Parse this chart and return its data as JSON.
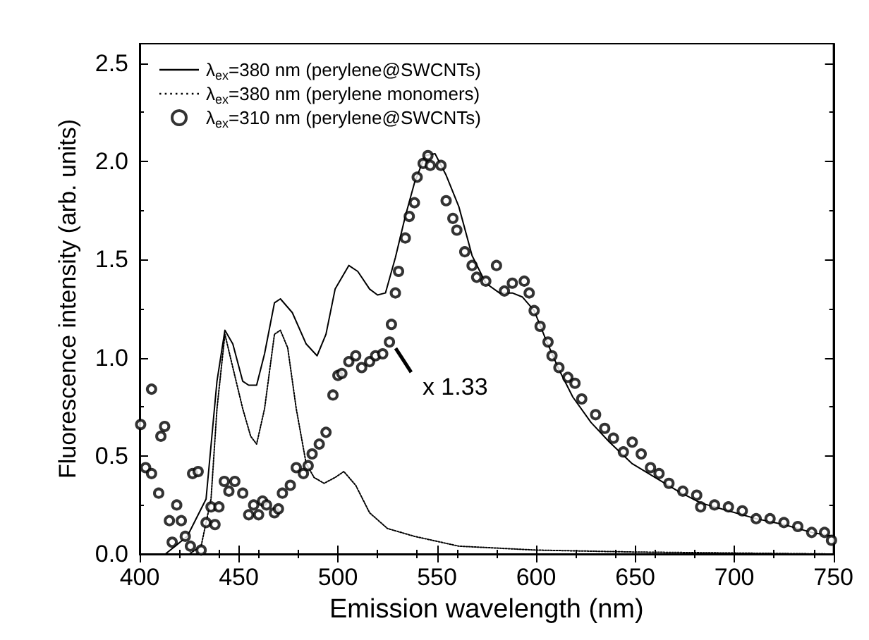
{
  "chart_data": {
    "type": "line",
    "xlabel": "Emission wavelength (nm)",
    "ylabel": "Fluorescence intensity (arb. units)",
    "xlim": [
      400,
      750
    ],
    "xticks": [
      400,
      450,
      500,
      550,
      600,
      650,
      700,
      750
    ],
    "ylim": [
      0,
      2.6
    ],
    "yticks": [
      {
        "value": 0,
        "label": "0.0"
      },
      0.5,
      {
        "value": 1,
        "label": "1.0"
      },
      1.5,
      {
        "value": 2,
        "label": "2.0"
      },
      2.5
    ],
    "legend": "top left",
    "grid": false,
    "annotations": [
      {
        "text": "x 1.33",
        "x": 527,
        "y": 1.07
      }
    ],
    "series": [
      {
        "name": "λ$_{ex}$=380 nm (perylene@SWCNTs)",
        "line_style": "solid",
        "marker": "none",
        "color": "#000000",
        "x": [
          400,
          413,
          424,
          433.5,
          439,
          443,
          447,
          452,
          455,
          459,
          463,
          468,
          471,
          477,
          484,
          489.5,
          494,
          498.6,
          505.5,
          510,
          516,
          520,
          524,
          529,
          534,
          538.6,
          544,
          549,
          554.6,
          561,
          567.7,
          574.6,
          581.5,
          588,
          593,
          599,
          604.6,
          611.5,
          618.5,
          627.7,
          637,
          648.5,
          660,
          671.6,
          683,
          697,
          711,
          725,
          739,
          750
        ],
        "values": [
          0,
          0,
          0.09,
          0.28,
          0.88,
          1.14,
          1.07,
          0.88,
          0.86,
          0.86,
          1.02,
          1.28,
          1.3,
          1.23,
          1.07,
          1.01,
          1.12,
          1.35,
          1.47,
          1.44,
          1.35,
          1.32,
          1.33,
          1.51,
          1.72,
          1.89,
          2.03,
          2.04,
          1.93,
          1.77,
          1.52,
          1.38,
          1.33,
          1.33,
          1.31,
          1.24,
          1.1,
          0.94,
          0.8,
          0.67,
          0.57,
          0.46,
          0.39,
          0.32,
          0.26,
          0.22,
          0.18,
          0.15,
          0.11,
          0.09
        ]
      },
      {
        "name": "λ$_{ex}$=380 nm (perylene monomers)",
        "line_style": "dotted",
        "marker": "none",
        "color": "#000000",
        "x": [
          400,
          425,
          431,
          436,
          439,
          443,
          447,
          452,
          456,
          459,
          463,
          468,
          471,
          474.7,
          479,
          484,
          488,
          493,
          498.6,
          503,
          509,
          516,
          525,
          538.6,
          561,
          600,
          650,
          700,
          750
        ],
        "values": [
          0,
          0,
          0.04,
          0.28,
          0.74,
          1.12,
          0.95,
          0.74,
          0.6,
          0.56,
          0.74,
          1.12,
          1.14,
          1.05,
          0.74,
          0.46,
          0.39,
          0.36,
          0.39,
          0.42,
          0.35,
          0.21,
          0.13,
          0.09,
          0.04,
          0.02,
          0.01,
          0.005,
          0
        ]
      },
      {
        "name": "λ$_{ex}$=310 nm (perylene@SWCNTs)",
        "type": "scatter",
        "marker": "circle",
        "color": "#000000",
        "x": [
          400.5,
          403,
          406,
          406,
          409.6,
          410.7,
          412.6,
          415,
          416.4,
          418.7,
          421,
          423,
          425.6,
          426.7,
          429.5,
          431,
          433.5,
          436,
          438,
          440,
          442.7,
          445,
          448,
          452,
          455,
          457.5,
          460,
          462,
          464,
          468,
          470,
          472,
          476,
          479,
          482.6,
          485,
          487,
          490.6,
          494,
          497.5,
          500,
          502,
          505.5,
          509,
          512,
          516,
          519,
          522.6,
          526,
          527,
          529,
          530.6,
          534,
          536,
          538.6,
          540,
          543,
          545.4,
          546.6,
          552,
          554.6,
          558,
          560,
          564,
          567.7,
          570,
          574.6,
          580,
          584,
          588,
          594,
          596.5,
          599,
          602,
          606,
          608,
          611.5,
          616,
          619.6,
          623,
          630,
          634.6,
          639,
          644,
          648.5,
          653,
          657.7,
          662,
          667,
          674,
          681,
          683,
          690,
          697,
          704,
          711,
          718,
          725,
          732,
          739,
          745.5,
          749
        ],
        "values": [
          0.66,
          0.44,
          0.84,
          0.41,
          0.31,
          0.6,
          0.65,
          0.17,
          0.06,
          0.25,
          0.17,
          0.09,
          0.04,
          0.41,
          0.42,
          0.02,
          0.16,
          0.24,
          0.15,
          0.24,
          0.37,
          0.32,
          0.37,
          0.31,
          0.2,
          0.25,
          0.2,
          0.27,
          0.25,
          0.21,
          0.23,
          0.31,
          0.35,
          0.44,
          0.41,
          0.45,
          0.51,
          0.56,
          0.62,
          0.81,
          0.91,
          0.92,
          0.98,
          1.01,
          0.95,
          0.98,
          1.01,
          1.02,
          1.08,
          1.17,
          1.33,
          1.44,
          1.61,
          1.72,
          1.79,
          1.92,
          1.99,
          2.03,
          1.98,
          1.98,
          1.8,
          1.71,
          1.65,
          1.54,
          1.47,
          1.41,
          1.39,
          1.47,
          1.34,
          1.38,
          1.39,
          1.33,
          1.24,
          1.16,
          1.08,
          1.01,
          0.95,
          0.9,
          0.87,
          0.79,
          0.71,
          0.64,
          0.59,
          0.52,
          0.57,
          0.51,
          0.44,
          0.41,
          0.36,
          0.32,
          0.3,
          0.24,
          0.25,
          0.24,
          0.22,
          0.18,
          0.18,
          0.16,
          0.14,
          0.11,
          0.11,
          0.07
        ]
      }
    ]
  }
}
